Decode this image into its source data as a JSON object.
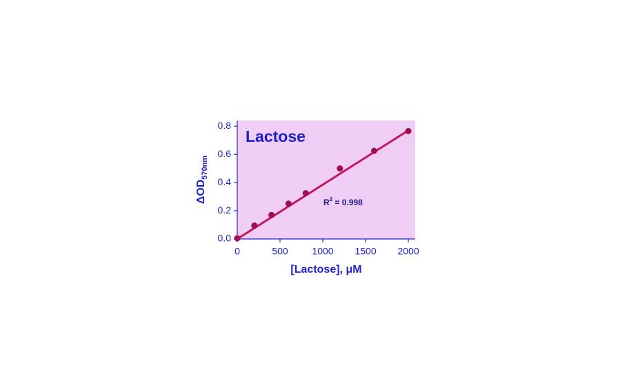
{
  "chart_data": {
    "type": "scatter",
    "title": "Lactose",
    "y_label": {
      "main": "ΔOD",
      "sub": "570nm"
    },
    "x_label": "[Lactose], μM",
    "annotation": {
      "main": "R",
      "sup": "2",
      "rest": " = 0.998"
    },
    "x": [
      0,
      200,
      400,
      600,
      800,
      1200,
      1600,
      2000
    ],
    "values": [
      0.005,
      0.095,
      0.17,
      0.25,
      0.325,
      0.5,
      0.625,
      0.765
    ],
    "fit": {
      "x": [
        0,
        2000
      ],
      "values": [
        0.0,
        0.77
      ],
      "color": "#c2185b"
    },
    "color": "#9c1050",
    "background": "#efcdf5",
    "axis_color": "#2222cc",
    "xlim": [
      0,
      2080
    ],
    "ylim": [
      0,
      0.84
    ],
    "xticks": [
      0,
      500,
      1000,
      1500,
      2000
    ],
    "yticks": [
      {
        "value": 0,
        "label": "0.0"
      },
      0.2,
      0.4,
      0.6,
      0.8
    ],
    "grid": false
  }
}
